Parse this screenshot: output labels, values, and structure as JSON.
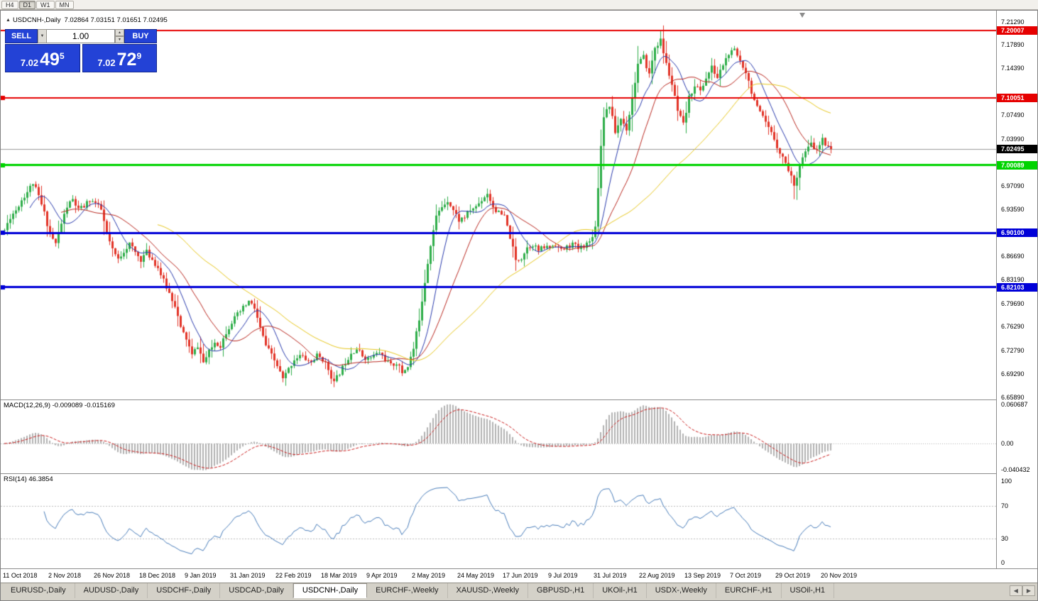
{
  "toolbar": {
    "timeframes": [
      {
        "label": "H4",
        "active": false
      },
      {
        "label": "D1",
        "active": true
      },
      {
        "label": "W1",
        "active": false
      },
      {
        "label": "MN",
        "active": false
      }
    ]
  },
  "chart_header": {
    "marker": "▲",
    "title": "USDCNH-,Daily",
    "ohlc": "7.02864 7.03151 7.01651 7.02495"
  },
  "trade_panel": {
    "sell_label": "SELL",
    "buy_label": "BUY",
    "volume": "1.00",
    "volume_dropdown_icon": "▼",
    "spinner_up_icon": "▲",
    "spinner_down_icon": "▼",
    "sell_price": {
      "big": "7.02",
      "mid": "49",
      "sup": "5"
    },
    "buy_price": {
      "big": "7.02",
      "mid": "72",
      "sup": "9"
    }
  },
  "price_axis_labels": [
    "7.21290",
    "7.17890",
    "7.14390",
    "7.07490",
    "7.03990",
    "6.97090",
    "6.93590",
    "6.86690",
    "6.83190",
    "6.79690",
    "6.76290",
    "6.72790",
    "6.69290",
    "6.65890"
  ],
  "macd_panel": {
    "label": "MACD(12,26,9) -0.009089 -0.015169",
    "axis_labels": [
      {
        "text": "0.060687",
        "value": 0.060687
      },
      {
        "text": "0.00",
        "value": 0
      },
      {
        "text": "-0.040432",
        "value": -0.040432
      }
    ]
  },
  "rsi_panel": {
    "label": "RSI(14) 46.3854",
    "axis_labels": [
      {
        "text": "100",
        "value": 100
      },
      {
        "text": "70",
        "value": 70
      },
      {
        "text": "30",
        "value": 30
      },
      {
        "text": "0",
        "value": 0
      }
    ]
  },
  "date_axis": [
    "11 Oct 2018",
    "2 Nov 2018",
    "26 Nov 2018",
    "18 Dec 2018",
    "9 Jan 2019",
    "31 Jan 2019",
    "22 Feb 2019",
    "18 Mar 2019",
    "9 Apr 2019",
    "2 May 2019",
    "24 May 2019",
    "17 Jun 2019",
    "9 Jul 2019",
    "31 Jul 2019",
    "22 Aug 2019",
    "13 Sep 2019",
    "7 Oct 2019",
    "29 Oct 2019",
    "20 Nov 2019"
  ],
  "tab_bar": {
    "tabs": [
      {
        "label": "EURUSD-,Daily",
        "active": false
      },
      {
        "label": "AUDUSD-,Daily",
        "active": false
      },
      {
        "label": "USDCHF-,Daily",
        "active": false
      },
      {
        "label": "USDCAD-,Daily",
        "active": false
      },
      {
        "label": "USDCNH-,Daily",
        "active": true
      },
      {
        "label": "EURCHF-,Weekly",
        "active": false
      },
      {
        "label": "XAUUSD-,Weekly",
        "active": false
      },
      {
        "label": "GBPUSD-,H1",
        "active": false
      },
      {
        "label": "UKOil-,H1",
        "active": false
      },
      {
        "label": "USDX-,Weekly",
        "active": false
      },
      {
        "label": "EURCHF-,H1",
        "active": false
      },
      {
        "label": "USOil-,H1",
        "active": false
      }
    ],
    "scroll_left": "◀",
    "scroll_right": "▶"
  },
  "chart_data": {
    "type": "candlestick",
    "symbol": "USDCNH-",
    "timeframe": "Daily",
    "ohlc_current": {
      "open": 7.02864,
      "high": 7.03151,
      "low": 7.01651,
      "close": 7.02495
    },
    "y_axis": {
      "top_price": 7.2129,
      "bottom_price": 6.6589
    },
    "bars": 292,
    "current_price": {
      "value": 7.02495,
      "text": "7.02495",
      "badge_color": "#000000"
    },
    "levels": [
      {
        "price": 7.20007,
        "color": "#e60000",
        "width": 2,
        "badge": "7.20007",
        "handle": false
      },
      {
        "price": 7.10051,
        "color": "#e60000",
        "width": 2,
        "badge": "7.10051",
        "handle": true
      },
      {
        "price": 7.00089,
        "color": "#00d400",
        "width": 3,
        "badge": "7.00089",
        "handle": true
      },
      {
        "price": 6.901,
        "color": "#0000d8",
        "width": 3,
        "badge": "6.90100",
        "handle": true
      },
      {
        "price": 6.82103,
        "color": "#0000d8",
        "width": 3,
        "badge": "6.82103",
        "handle": true
      }
    ],
    "moving_averages": [
      {
        "period": 10,
        "color": "#2b3cae"
      },
      {
        "period": 21,
        "color": "#bb2a22"
      },
      {
        "period": 55,
        "color": "#e8c820"
      }
    ],
    "macd": {
      "fast": 12,
      "slow": 26,
      "signal": 9,
      "value": -0.009089,
      "signal_value": -0.015169
    },
    "rsi": {
      "period": 14,
      "value": 46.3854,
      "levels": [
        70,
        30
      ],
      "range": [
        0,
        100
      ]
    },
    "colors": {
      "up": "#2fae4a",
      "down": "#e23428",
      "macd_hist": "#b2b2b2",
      "macd_signal": "#cc2020",
      "rsi_line": "#4a7ebb",
      "current_price_line": "#9a9a9a"
    },
    "noise": {
      "seed": 11,
      "close_amp": 0.008,
      "wick_amp": 0.005
    },
    "close_anchors": [
      [
        0,
        6.905
      ],
      [
        2,
        6.925
      ],
      [
        4,
        6.935
      ],
      [
        6,
        6.95
      ],
      [
        8,
        6.962
      ],
      [
        10,
        6.975
      ],
      [
        12,
        6.955
      ],
      [
        14,
        6.93
      ],
      [
        16,
        6.9
      ],
      [
        18,
        6.885
      ],
      [
        20,
        6.915
      ],
      [
        22,
        6.94
      ],
      [
        24,
        6.95
      ],
      [
        26,
        6.935
      ],
      [
        28,
        6.94
      ],
      [
        30,
        6.95
      ],
      [
        32,
        6.945
      ],
      [
        34,
        6.935
      ],
      [
        36,
        6.9
      ],
      [
        38,
        6.875
      ],
      [
        40,
        6.862
      ],
      [
        42,
        6.875
      ],
      [
        44,
        6.885
      ],
      [
        46,
        6.872
      ],
      [
        48,
        6.862
      ],
      [
        50,
        6.873
      ],
      [
        52,
        6.862
      ],
      [
        54,
        6.85
      ],
      [
        56,
        6.83
      ],
      [
        58,
        6.812
      ],
      [
        60,
        6.795
      ],
      [
        62,
        6.76
      ],
      [
        64,
        6.745
      ],
      [
        66,
        6.72
      ],
      [
        68,
        6.735
      ],
      [
        70,
        6.71
      ],
      [
        72,
        6.725
      ],
      [
        74,
        6.74
      ],
      [
        76,
        6.735
      ],
      [
        78,
        6.755
      ],
      [
        80,
        6.77
      ],
      [
        83,
        6.785
      ],
      [
        86,
        6.8
      ],
      [
        88,
        6.79
      ],
      [
        90,
        6.76
      ],
      [
        92,
        6.735
      ],
      [
        94,
        6.72
      ],
      [
        96,
        6.705
      ],
      [
        98,
        6.685
      ],
      [
        100,
        6.7
      ],
      [
        102,
        6.715
      ],
      [
        104,
        6.72
      ],
      [
        106,
        6.715
      ],
      [
        108,
        6.71
      ],
      [
        110,
        6.72
      ],
      [
        112,
        6.715
      ],
      [
        114,
        6.7
      ],
      [
        116,
        6.68
      ],
      [
        118,
        6.695
      ],
      [
        120,
        6.71
      ],
      [
        122,
        6.725
      ],
      [
        124,
        6.73
      ],
      [
        126,
        6.72
      ],
      [
        128,
        6.715
      ],
      [
        130,
        6.72
      ],
      [
        132,
        6.725
      ],
      [
        134,
        6.715
      ],
      [
        136,
        6.705
      ],
      [
        138,
        6.71
      ],
      [
        140,
        6.695
      ],
      [
        142,
        6.705
      ],
      [
        144,
        6.73
      ],
      [
        146,
        6.775
      ],
      [
        148,
        6.83
      ],
      [
        150,
        6.885
      ],
      [
        152,
        6.925
      ],
      [
        154,
        6.94
      ],
      [
        156,
        6.95
      ],
      [
        158,
        6.935
      ],
      [
        160,
        6.92
      ],
      [
        162,
        6.925
      ],
      [
        164,
        6.935
      ],
      [
        166,
        6.94
      ],
      [
        168,
        6.95
      ],
      [
        170,
        6.96
      ],
      [
        172,
        6.94
      ],
      [
        174,
        6.93
      ],
      [
        176,
        6.925
      ],
      [
        178,
        6.895
      ],
      [
        180,
        6.86
      ],
      [
        182,
        6.865
      ],
      [
        184,
        6.88
      ],
      [
        186,
        6.885
      ],
      [
        188,
        6.875
      ],
      [
        190,
        6.88
      ],
      [
        192,
        6.88
      ],
      [
        194,
        6.885
      ],
      [
        196,
        6.875
      ],
      [
        198,
        6.88
      ],
      [
        200,
        6.885
      ],
      [
        202,
        6.878
      ],
      [
        204,
        6.883
      ],
      [
        206,
        6.888
      ],
      [
        208,
        6.91
      ],
      [
        210,
        7.03
      ],
      [
        211,
        7.075
      ],
      [
        213,
        7.09
      ],
      [
        215,
        7.05
      ],
      [
        217,
        7.07
      ],
      [
        219,
        7.055
      ],
      [
        221,
        7.1
      ],
      [
        223,
        7.15
      ],
      [
        225,
        7.16
      ],
      [
        227,
        7.135
      ],
      [
        229,
        7.175
      ],
      [
        231,
        7.185
      ],
      [
        233,
        7.15
      ],
      [
        235,
        7.12
      ],
      [
        237,
        7.08
      ],
      [
        239,
        7.06
      ],
      [
        241,
        7.1
      ],
      [
        243,
        7.12
      ],
      [
        245,
        7.11
      ],
      [
        247,
        7.13
      ],
      [
        249,
        7.145
      ],
      [
        251,
        7.13
      ],
      [
        253,
        7.15
      ],
      [
        255,
        7.165
      ],
      [
        257,
        7.17
      ],
      [
        259,
        7.155
      ],
      [
        261,
        7.14
      ],
      [
        263,
        7.11
      ],
      [
        265,
        7.085
      ],
      [
        267,
        7.07
      ],
      [
        269,
        7.055
      ],
      [
        271,
        7.04
      ],
      [
        273,
        7.02
      ],
      [
        275,
        7.005
      ],
      [
        277,
        6.985
      ],
      [
        278,
        6.968
      ],
      [
        280,
        7.005
      ],
      [
        282,
        7.02
      ],
      [
        284,
        7.032
      ],
      [
        286,
        7.022
      ],
      [
        288,
        7.038
      ],
      [
        290,
        7.03
      ],
      [
        291,
        7.02495
      ]
    ]
  }
}
